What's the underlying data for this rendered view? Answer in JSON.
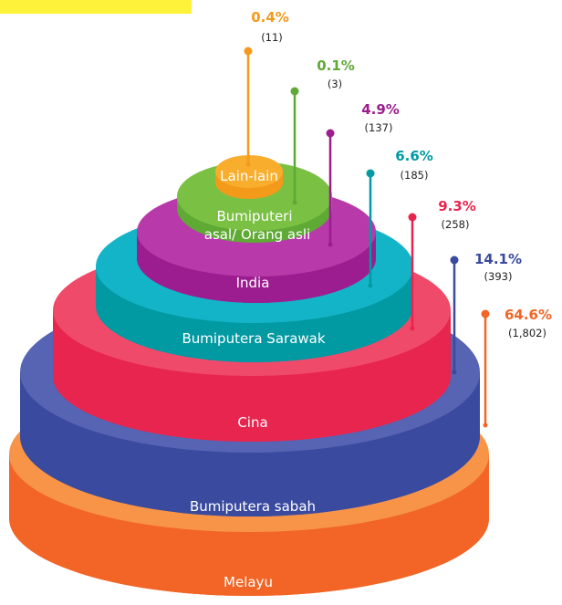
{
  "chart_data": {
    "type": "pie",
    "title": "",
    "series": [
      {
        "label": "Melayu",
        "percent": 64.6,
        "count_text": "(1,802)",
        "value": 1802,
        "color": "#f26526",
        "color_light": "#f79447"
      },
      {
        "label": "Bumiputera sabah",
        "percent": 14.1,
        "count_text": "(393)",
        "value": 393,
        "color": "#3a4a9f",
        "color_light": "#5763b3"
      },
      {
        "label": "Cina",
        "percent": 9.3,
        "count_text": "(258)",
        "value": 258,
        "color": "#e8254f",
        "color_light": "#f04a6b"
      },
      {
        "label": "Bumiputera Sarawak",
        "percent": 6.6,
        "count_text": "(185)",
        "value": 185,
        "color": "#0199a2",
        "color_light": "#14b4c8"
      },
      {
        "label": "India",
        "percent": 4.9,
        "count_text": "(137)",
        "value": 137,
        "color": "#9c1d8f",
        "color_light": "#b83aaa"
      },
      {
        "label": "Bumiputeri asal/ Orang asli",
        "label_lines": [
          "Bumiputeri",
          "asal/ Orang asli"
        ],
        "percent": 0.1,
        "count_text": "(3)",
        "value": 3,
        "color": "#5fa935",
        "color_light": "#79c043"
      },
      {
        "label": "Lain-lain",
        "percent": 0.4,
        "count_text": "(11)",
        "value": 11,
        "color": "#f39a1b",
        "color_light": "#f9ad2c"
      }
    ]
  },
  "labels": {
    "melayu": {
      "pct": "64.6%",
      "count": "(1,802)",
      "name": "Melayu"
    },
    "sabah": {
      "pct": "14.1%",
      "count": "(393)",
      "name": "Bumiputera sabah"
    },
    "cina": {
      "pct": "9.3%",
      "count": "(258)",
      "name": "Cina"
    },
    "sarawak": {
      "pct": "6.6%",
      "count": "(185)",
      "name": "Bumiputera Sarawak"
    },
    "india": {
      "pct": "4.9%",
      "count": "(137)",
      "name": "India"
    },
    "asli": {
      "pct": "0.1%",
      "count": "(3)",
      "name_line1": "Bumiputeri",
      "name_line2": "asal/ Orang asli"
    },
    "lain": {
      "pct": "0.4%",
      "count": "(11)",
      "name": "Lain-lain"
    }
  }
}
